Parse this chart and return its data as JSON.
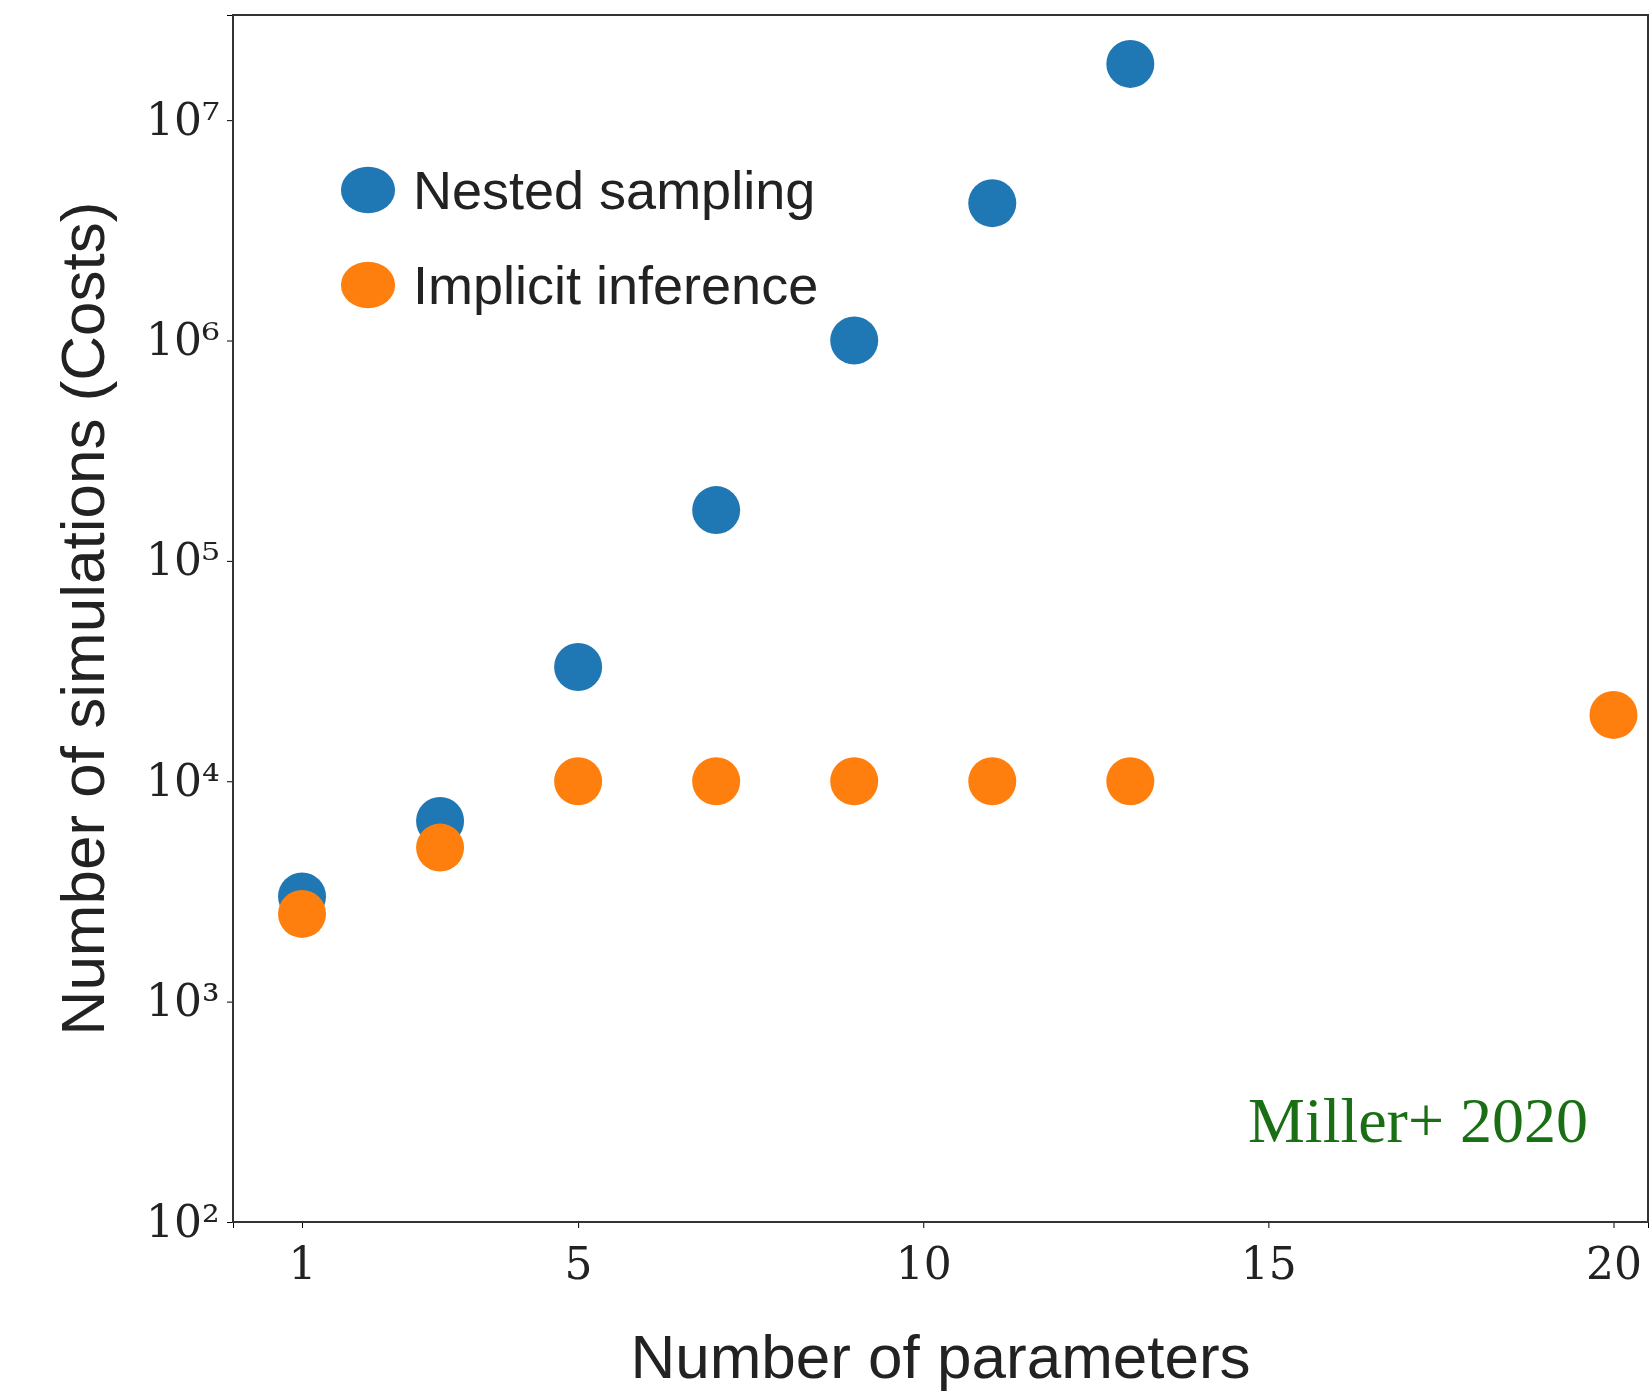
{
  "chart_data": {
    "type": "scatter",
    "xlabel": "Number of parameters",
    "ylabel": "Number of simulations (Costs)",
    "x": [
      1,
      3,
      5,
      7,
      9,
      11,
      13,
      20
    ],
    "series": [
      {
        "name": "Nested sampling",
        "color": "#1f77b4",
        "values": [
          3000,
          6600,
          33000,
          170000,
          1000000,
          4200000,
          18000000,
          null
        ]
      },
      {
        "name": "Implicit inference",
        "color": "#ff7f0e",
        "values": [
          2500,
          5000,
          10000,
          10000,
          10000,
          10000,
          10000,
          20000
        ]
      }
    ],
    "xlim": [
      0,
      20.5
    ],
    "xticks": [
      1,
      5,
      10,
      15,
      20
    ],
    "ylim": [
      100,
      30000000
    ],
    "yticks": [
      {
        "value": 100,
        "label": "10²"
      },
      {
        "value": 1000,
        "label": "10³"
      },
      {
        "value": 10000,
        "label": "10⁴"
      },
      {
        "value": 100000,
        "label": "10⁵"
      },
      {
        "value": 1000000,
        "label": "10⁶"
      },
      {
        "value": 10000000,
        "label": "10⁷"
      }
    ],
    "log": "y",
    "grid": false,
    "legend": "top left",
    "marker": "circle",
    "annotations": [
      "Miller+ 2020"
    ]
  }
}
